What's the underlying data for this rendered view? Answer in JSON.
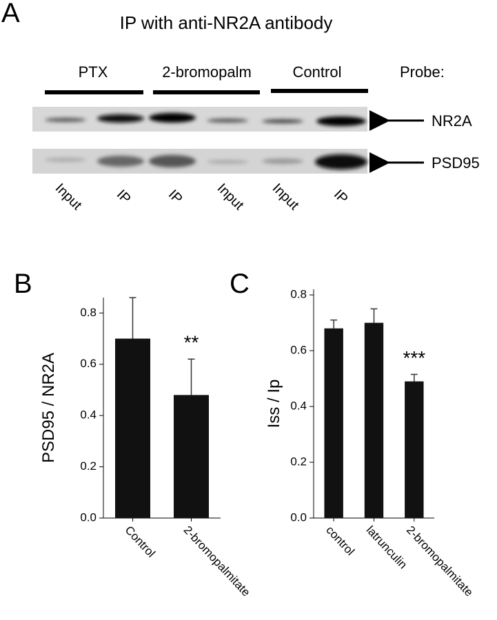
{
  "panel_a": {
    "letter": "A",
    "title": "IP with anti-NR2A antibody",
    "groups": [
      "PTX",
      "2-bromopalm",
      "Control"
    ],
    "probe_label": "Probe:",
    "probes": [
      "NR2A",
      "PSD95"
    ],
    "lanes": [
      "Input",
      "IP",
      "IP",
      "Input",
      "Input",
      "IP"
    ]
  },
  "chart_data": [
    {
      "type": "bar",
      "letter": "B",
      "ylabel": "PSD95 / NR2A",
      "categories": [
        "Control",
        "2-bromopalmitate"
      ],
      "values": [
        0.7,
        0.48
      ],
      "errors": [
        0.16,
        0.14
      ],
      "annotations": [
        null,
        "**"
      ],
      "color": "#111111",
      "ylim": [
        0,
        0.86
      ],
      "yticks": [
        {
          "value": 0,
          "label": "0.0"
        },
        0.2,
        0.4,
        0.6,
        0.8
      ]
    },
    {
      "type": "bar",
      "letter": "C",
      "ylabel": "Iss / Ip",
      "categories": [
        "control",
        "latrunculin",
        "2-bromopalmitate"
      ],
      "values": [
        0.68,
        0.7,
        0.49
      ],
      "errors": [
        0.03,
        0.05,
        0.025
      ],
      "annotations": [
        null,
        null,
        "***"
      ],
      "color": "#111111",
      "ylim": [
        0,
        0.82
      ],
      "yticks": [
        {
          "value": 0,
          "label": "0.0"
        },
        0.2,
        0.4,
        0.6,
        0.8
      ]
    }
  ]
}
